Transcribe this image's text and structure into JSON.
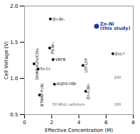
{
  "chart_data": {
    "type": "scatter",
    "xlabel": "Effective Concentration (M)",
    "ylabel": "Cell Voltage (V)",
    "xlim": [
      0,
      8
    ],
    "ylim": [
      0.5,
      2.0
    ],
    "xticks": [
      0,
      2,
      4,
      6,
      8
    ],
    "yticks": [
      0.5,
      {
        "value": 1.0,
        "label": "1.0"
      },
      1.5,
      {
        "value": 2.0,
        "label": "2.0"
      }
    ],
    "color": "#111111",
    "points": [
      {
        "x": 0.7,
        "y": 1.2,
        "label": "DHAQ-K₄Fe(CN)₆"
      },
      {
        "x": 1.0,
        "y": 1.13,
        "label": "Fe-Cr"
      },
      {
        "x": 1.1,
        "y": 0.77,
        "label": "BTMAP-FcNi"
      },
      {
        "x": 1.9,
        "y": 1.82,
        "label": "Zn-Br₂"
      },
      {
        "x": 1.85,
        "y": 1.42,
        "label": "PS-Br₂"
      },
      {
        "x": 2.1,
        "y": 1.26,
        "label": "VRFB"
      },
      {
        "x": 2.2,
        "y": 0.92,
        "label": "AQDS-HBr"
      },
      {
        "x": 4.3,
        "y": 1.18,
        "label": "LTP-LFP"
      },
      {
        "x": 4.5,
        "y": 0.82,
        "label": "Zn-I₂/Br₂"
      },
      {
        "x": 6.5,
        "y": 1.34,
        "label": "ZnI₂*"
      }
    ],
    "highlight": {
      "x": 5.3,
      "y": 1.72,
      "label": "Zn-Ni\n(this study)",
      "color": "#1a3aaa"
    },
    "annotations": [
      {
        "x": 2.05,
        "y": 0.618,
        "text": "50 Wh/L catholyte"
      },
      {
        "x": 6.6,
        "y": 0.62,
        "text": "100"
      },
      {
        "x": 6.6,
        "y": 1.0,
        "text": "200"
      }
    ]
  }
}
